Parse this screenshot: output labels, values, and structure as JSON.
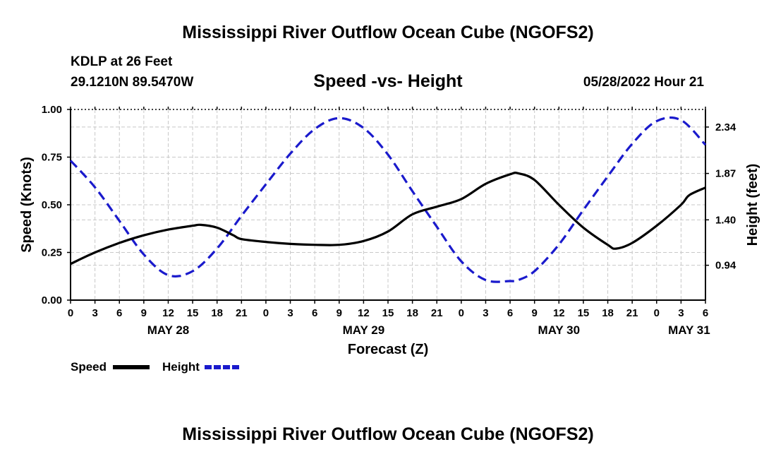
{
  "header": {
    "title": "Mississippi River Outflow Ocean Cube (NGOFS2)",
    "station": "KDLP at 26 Feet",
    "coordinates": "29.1210N  89.5470W",
    "subtitle": "Speed -vs- Height",
    "datetime": "05/28/2022 Hour 21"
  },
  "footer": {
    "title": "Mississippi River Outflow Ocean Cube (NGOFS2)"
  },
  "colors": {
    "speed": "#000000",
    "height": "#1a1acc",
    "grid": "#c8c8c8",
    "axis": "#000000"
  },
  "chart_data": {
    "type": "line",
    "xlabel": "Forecast (Z)",
    "ylabel": "Speed (Knots)",
    "y2label": "Height (feet)",
    "xlim": [
      0,
      78
    ],
    "ylim": [
      0,
      1
    ],
    "y2lim": [
      0.587,
      2.518
    ],
    "x_tick_hours": [
      0,
      3,
      6,
      9,
      12,
      15,
      18,
      21,
      24,
      27,
      30,
      33,
      36,
      39,
      42,
      45,
      48,
      51,
      54,
      57,
      60,
      63,
      66,
      69,
      72,
      75,
      78
    ],
    "x_tick_labels": [
      "0",
      "3",
      "6",
      "9",
      "12",
      "15",
      "18",
      "21",
      "0",
      "3",
      "6",
      "9",
      "12",
      "15",
      "18",
      "21",
      "0",
      "3",
      "6",
      "9",
      "12",
      "15",
      "18",
      "21",
      "0",
      "3",
      "6"
    ],
    "y_ticks": [
      0,
      0.25,
      0.5,
      0.75,
      1.0
    ],
    "y_tick_labels": [
      "0.00",
      "0.25",
      "0.50",
      "0.75",
      "1.00"
    ],
    "y2_ticks": [
      0.94,
      1.4,
      1.87,
      2.34
    ],
    "y2_tick_labels": [
      "0.94",
      "1.40",
      "1.87",
      "2.34"
    ],
    "day_labels": [
      {
        "hour": 12,
        "label": "MAY 28"
      },
      {
        "hour": 36,
        "label": "MAY 29"
      },
      {
        "hour": 60,
        "label": "MAY 30"
      },
      {
        "hour": 76,
        "label": "MAY 31"
      }
    ],
    "legend": [
      {
        "name": "Speed",
        "style": "solid"
      },
      {
        "name": "Height",
        "style": "dashed"
      }
    ],
    "series": [
      {
        "name": "Speed",
        "axis": "left",
        "style": "solid",
        "x": [
          0,
          3,
          6,
          9,
          12,
          15,
          16,
          18,
          20,
          21,
          24,
          27,
          30,
          33,
          36,
          39,
          42,
          45,
          48,
          51,
          54,
          55,
          57,
          60,
          63,
          66,
          67,
          69,
          72,
          75,
          76,
          78
        ],
        "values": [
          0.19,
          0.25,
          0.3,
          0.34,
          0.37,
          0.39,
          0.395,
          0.38,
          0.34,
          0.32,
          0.305,
          0.295,
          0.29,
          0.29,
          0.31,
          0.36,
          0.45,
          0.49,
          0.53,
          0.61,
          0.66,
          0.665,
          0.63,
          0.5,
          0.38,
          0.29,
          0.27,
          0.3,
          0.39,
          0.5,
          0.55,
          0.59
        ]
      },
      {
        "name": "Height",
        "axis": "right",
        "style": "dashed",
        "x": [
          0,
          3,
          6,
          9,
          12,
          15,
          18,
          21,
          24,
          27,
          30,
          33,
          36,
          39,
          42,
          45,
          48,
          51,
          54,
          55,
          57,
          60,
          63,
          66,
          69,
          72,
          75,
          78
        ],
        "values": [
          2.0,
          1.73,
          1.39,
          1.05,
          0.84,
          0.88,
          1.11,
          1.44,
          1.76,
          2.07,
          2.32,
          2.43,
          2.33,
          2.06,
          1.69,
          1.33,
          0.98,
          0.79,
          0.78,
          0.79,
          0.88,
          1.15,
          1.5,
          1.84,
          2.17,
          2.4,
          2.41,
          2.16
        ]
      }
    ]
  }
}
